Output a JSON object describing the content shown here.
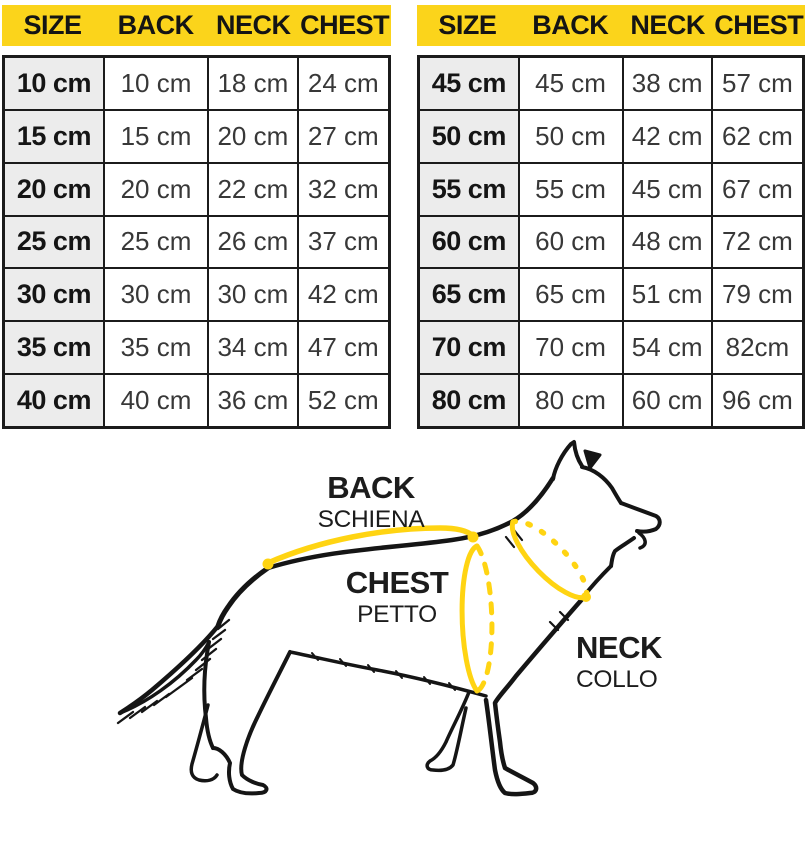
{
  "colors": {
    "header_yellow": "#FBD41B",
    "measure_yellow": "#FFD412",
    "size_col_bg": "#ECECEC",
    "border_dark": "#1B1B1B",
    "text_dark": "#222222"
  },
  "tables": [
    {
      "headers": [
        "SIZE",
        "BACK",
        "NECK",
        "CHEST"
      ],
      "rows": [
        [
          "10 cm",
          "10 cm",
          "18 cm",
          "24 cm"
        ],
        [
          "15 cm",
          "15 cm",
          "20 cm",
          "27 cm"
        ],
        [
          "20 cm",
          "20 cm",
          "22 cm",
          "32 cm"
        ],
        [
          "25 cm",
          "25 cm",
          "26 cm",
          "37 cm"
        ],
        [
          "30 cm",
          "30 cm",
          "30 cm",
          "42 cm"
        ],
        [
          "35 cm",
          "35 cm",
          "34 cm",
          "47 cm"
        ],
        [
          "40 cm",
          "40 cm",
          "36 cm",
          "52 cm"
        ]
      ]
    },
    {
      "headers": [
        "SIZE",
        "BACK",
        "NECK",
        "CHEST"
      ],
      "rows": [
        [
          "45 cm",
          "45 cm",
          "38 cm",
          "57 cm"
        ],
        [
          "50 cm",
          "50 cm",
          "42 cm",
          "62 cm"
        ],
        [
          "55 cm",
          "55 cm",
          "45 cm",
          "67 cm"
        ],
        [
          "60 cm",
          "60 cm",
          "48 cm",
          "72 cm"
        ],
        [
          "65 cm",
          "65 cm",
          "51 cm",
          "79 cm"
        ],
        [
          "70 cm",
          "70 cm",
          "54 cm",
          "82cm"
        ],
        [
          "80 cm",
          "80 cm",
          "60 cm",
          "96 cm"
        ]
      ]
    }
  ],
  "diagram": {
    "back_label": "BACK",
    "back_sublabel": "SCHIENA",
    "chest_label": "CHEST",
    "chest_sublabel": "PETTO",
    "neck_label": "NECK",
    "neck_sublabel": "COLLO"
  }
}
